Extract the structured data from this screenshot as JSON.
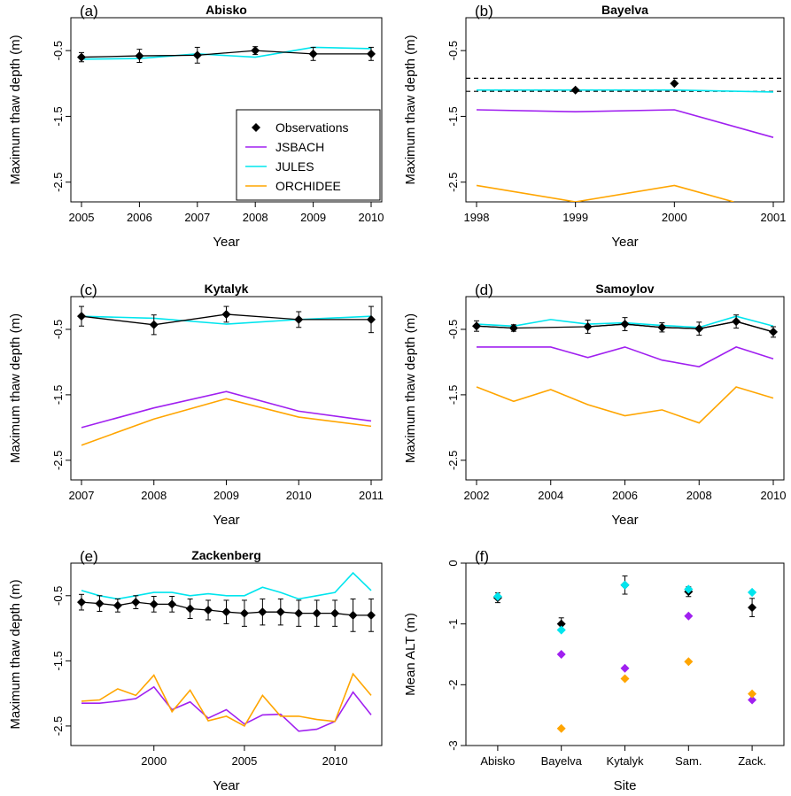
{
  "colors": {
    "observations": "#000000",
    "JSBACH": "#a020f0",
    "JULES": "#00e5ee",
    "ORCHIDEE": "#ffa500",
    "reference": "#000000"
  },
  "legend": {
    "entries": [
      {
        "label": "Observations",
        "series": "observations",
        "marker": "diamond"
      },
      {
        "label": "JSBACH",
        "series": "JSBACH",
        "marker": "line"
      },
      {
        "label": "JULES",
        "series": "JULES",
        "marker": "line"
      },
      {
        "label": "ORCHIDEE",
        "series": "ORCHIDEE",
        "marker": "line"
      }
    ],
    "placement": "bottom-right of panel (a)"
  },
  "chart_data": [
    {
      "type": "line",
      "label": "(a)",
      "title": "Abisko",
      "xlabel": "Year",
      "ylabel": "Maximum thaw depth (m)",
      "xlim": [
        2005,
        2010
      ],
      "ylim": [
        -2.8,
        0.0
      ],
      "xticks": [
        2005,
        2006,
        2007,
        2008,
        2009,
        2010
      ],
      "yticks": [
        -2.5,
        -1.5,
        -0.5
      ],
      "x": [
        2005,
        2006,
        2007,
        2008,
        2009,
        2010
      ],
      "observations": {
        "values": [
          -0.6,
          -0.58,
          -0.57,
          -0.5,
          -0.55,
          -0.55
        ],
        "errors": [
          0.07,
          0.1,
          0.12,
          0.06,
          0.1,
          0.1
        ]
      },
      "series": [
        {
          "name": "JULES",
          "values": [
            -0.63,
            -0.62,
            -0.55,
            -0.6,
            -0.45,
            -0.47
          ]
        }
      ]
    },
    {
      "type": "line",
      "label": "(b)",
      "title": "Bayelva",
      "xlabel": "Year",
      "ylabel": "Maximum thaw depth (m)",
      "xlim": [
        1998,
        2001
      ],
      "ylim": [
        -2.8,
        0.0
      ],
      "xticks": [
        1998,
        1999,
        2000,
        2001
      ],
      "yticks": [
        -2.5,
        -1.5,
        -0.5
      ],
      "x": [
        1998,
        1999,
        2000,
        2001
      ],
      "observations": {
        "x": [
          1999,
          2000
        ],
        "values": [
          -1.1,
          -1.0
        ],
        "errors": [
          0.0,
          0.0
        ]
      },
      "reference_lines": [
        -0.92,
        -1.12
      ],
      "series": [
        {
          "name": "JSBACH",
          "values": [
            -1.4,
            -1.43,
            -1.4,
            -1.82
          ]
        },
        {
          "name": "JULES",
          "values": [
            -1.1,
            -1.1,
            -1.1,
            -1.13
          ]
        },
        {
          "name": "ORCHIDEE",
          "x": [
            1998,
            1999,
            2000,
            2000.6
          ],
          "values": [
            -2.55,
            -2.8,
            -2.55,
            -2.8
          ]
        }
      ]
    },
    {
      "type": "line",
      "label": "(c)",
      "title": "Kytalyk",
      "xlabel": "Year",
      "ylabel": "Maximum thaw depth (m)",
      "xlim": [
        2007,
        2011
      ],
      "ylim": [
        -2.8,
        0.0
      ],
      "xticks": [
        2007,
        2008,
        2009,
        2010,
        2011
      ],
      "yticks": [
        -2.5,
        -1.5,
        -0.5
      ],
      "x": [
        2007,
        2008,
        2009,
        2010,
        2011
      ],
      "observations": {
        "values": [
          -0.3,
          -0.43,
          -0.27,
          -0.35,
          -0.35
        ],
        "errors": [
          0.15,
          0.15,
          0.12,
          0.12,
          0.2
        ]
      },
      "series": [
        {
          "name": "JSBACH",
          "values": [
            -2.0,
            -1.7,
            -1.45,
            -1.75,
            -1.9
          ]
        },
        {
          "name": "JULES",
          "values": [
            -0.3,
            -0.33,
            -0.42,
            -0.35,
            -0.3
          ]
        },
        {
          "name": "ORCHIDEE",
          "values": [
            -2.27,
            -1.87,
            -1.56,
            -1.84,
            -1.98
          ]
        }
      ]
    },
    {
      "type": "line",
      "label": "(d)",
      "title": "Samoylov",
      "xlabel": "Year",
      "ylabel": "Maximum thaw depth (m)",
      "xlim": [
        2002,
        2010
      ],
      "ylim": [
        -2.8,
        0.0
      ],
      "xticks": [
        2002,
        2004,
        2006,
        2008,
        2010
      ],
      "yticks": [
        -2.5,
        -1.5,
        -0.5
      ],
      "x": [
        2002,
        2003,
        2005,
        2006,
        2007,
        2008,
        2009,
        2010
      ],
      "observations": {
        "values": [
          -0.45,
          -0.48,
          -0.46,
          -0.42,
          -0.47,
          -0.49,
          -0.38,
          -0.54
        ],
        "errors": [
          0.08,
          0.05,
          0.1,
          0.1,
          0.07,
          0.1,
          0.1,
          0.08
        ]
      },
      "series": [
        {
          "name": "JSBACH",
          "x": [
            2002,
            2004,
            2005,
            2006,
            2007,
            2008,
            2009,
            2010
          ],
          "values": [
            -0.77,
            -0.77,
            -0.93,
            -0.77,
            -0.97,
            -1.07,
            -0.77,
            -0.95
          ]
        },
        {
          "name": "JULES",
          "x": [
            2002,
            2003,
            2004,
            2005,
            2006,
            2007,
            2008,
            2009,
            2010
          ],
          "values": [
            -0.42,
            -0.45,
            -0.35,
            -0.42,
            -0.4,
            -0.44,
            -0.47,
            -0.3,
            -0.45
          ]
        },
        {
          "name": "ORCHIDEE",
          "x": [
            2002,
            2003,
            2004,
            2005,
            2006,
            2007,
            2008,
            2009,
            2010
          ],
          "values": [
            -1.38,
            -1.6,
            -1.42,
            -1.65,
            -1.82,
            -1.73,
            -1.93,
            -1.38,
            -1.55
          ]
        }
      ]
    },
    {
      "type": "line",
      "label": "(e)",
      "title": "Zackenberg",
      "xlabel": "Year",
      "ylabel": "Maximum thaw depth (m)",
      "xlim": [
        1996,
        2012
      ],
      "ylim": [
        -2.8,
        0.0
      ],
      "xticks": [
        2000,
        2005,
        2010
      ],
      "yticks": [
        -2.5,
        -1.5,
        -0.5
      ],
      "x": [
        1996,
        1997,
        1998,
        1999,
        2000,
        2001,
        2002,
        2003,
        2004,
        2005,
        2006,
        2007,
        2008,
        2009,
        2010,
        2011,
        2012
      ],
      "observations": {
        "values": [
          -0.6,
          -0.62,
          -0.65,
          -0.6,
          -0.63,
          -0.63,
          -0.7,
          -0.72,
          -0.75,
          -0.77,
          -0.75,
          -0.75,
          -0.77,
          -0.77,
          -0.77,
          -0.8,
          -0.8
        ],
        "errors": [
          0.12,
          0.12,
          0.1,
          0.1,
          0.12,
          0.12,
          0.15,
          0.15,
          0.18,
          0.2,
          0.2,
          0.2,
          0.2,
          0.2,
          0.2,
          0.25,
          0.25
        ]
      },
      "series": [
        {
          "name": "JSBACH",
          "values": [
            -2.15,
            -2.15,
            -2.12,
            -2.08,
            -1.9,
            -2.25,
            -2.13,
            -2.38,
            -2.25,
            -2.47,
            -2.33,
            -2.32,
            -2.58,
            -2.55,
            -2.43,
            -1.98,
            -2.33
          ]
        },
        {
          "name": "JULES",
          "values": [
            -0.42,
            -0.5,
            -0.55,
            -0.5,
            -0.45,
            -0.45,
            -0.5,
            -0.47,
            -0.5,
            -0.5,
            -0.37,
            -0.45,
            -0.55,
            -0.5,
            -0.45,
            -0.15,
            -0.42
          ]
        },
        {
          "name": "ORCHIDEE",
          "values": [
            -2.12,
            -2.1,
            -1.93,
            -2.03,
            -1.72,
            -2.28,
            -1.95,
            -2.42,
            -2.35,
            -2.5,
            -2.03,
            -2.35,
            -2.35,
            -2.4,
            -2.43,
            -1.7,
            -2.03
          ]
        }
      ]
    },
    {
      "type": "scatter",
      "label": "(f)",
      "xlabel": "Site",
      "ylabel": "Mean ALT (m)",
      "ylim": [
        -3.0,
        0.0
      ],
      "yticks": [
        0.0,
        -1.0,
        -2.0,
        -3.0
      ],
      "categories": [
        "Abisko",
        "Bayelva",
        "Kytalyk",
        "Sam.",
        "Zack."
      ],
      "observations": {
        "values": [
          -0.57,
          -1.0,
          -0.36,
          -0.47,
          -0.73
        ],
        "errors": [
          0.08,
          0.1,
          0.15,
          0.08,
          0.15
        ]
      },
      "series": [
        {
          "name": "JSBACH",
          "values": [
            null,
            -1.5,
            -1.73,
            -0.87,
            -2.25
          ]
        },
        {
          "name": "JULES",
          "values": [
            -0.55,
            -1.1,
            -0.36,
            -0.43,
            -0.48
          ]
        },
        {
          "name": "ORCHIDEE",
          "values": [
            null,
            -2.72,
            -1.9,
            -1.62,
            -2.15
          ]
        }
      ]
    }
  ]
}
